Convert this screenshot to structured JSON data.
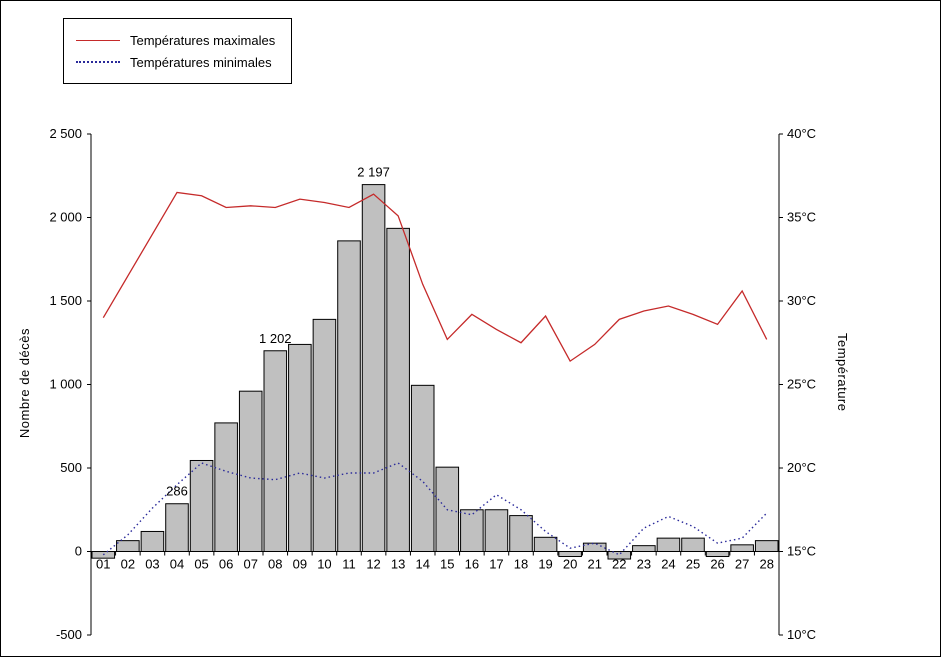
{
  "chart_data": {
    "type": "bar",
    "subtype": "combo-bar-and-lines",
    "title": "",
    "categories": [
      "01",
      "02",
      "03",
      "04",
      "05",
      "06",
      "07",
      "08",
      "09",
      "10",
      "11",
      "12",
      "13",
      "14",
      "15",
      "16",
      "17",
      "18",
      "19",
      "20",
      "21",
      "22",
      "23",
      "24",
      "25",
      "26",
      "27",
      "28"
    ],
    "bar_series": {
      "name": "Nombre de décès",
      "axis": "left",
      "values": [
        -40,
        65,
        120,
        286,
        545,
        770,
        960,
        1202,
        1240,
        1390,
        1860,
        2197,
        1935,
        995,
        505,
        250,
        250,
        215,
        85,
        -30,
        50,
        -45,
        35,
        80,
        80,
        -30,
        40,
        65
      ]
    },
    "series": [
      {
        "name": "Températures maximales",
        "axis": "right",
        "style": "solid",
        "color": "#c52a2a",
        "values": [
          29.0,
          31.5,
          34.0,
          36.5,
          36.3,
          35.6,
          35.7,
          35.6,
          36.1,
          35.9,
          35.6,
          36.4,
          35.1,
          31.0,
          27.7,
          29.2,
          28.3,
          27.5,
          29.1,
          26.4,
          27.4,
          28.9,
          29.4,
          29.7,
          29.2,
          28.6,
          30.6,
          27.7
        ]
      },
      {
        "name": "Températures minimales",
        "axis": "right",
        "style": "dotted",
        "color": "#2a2a9a",
        "values": [
          14.8,
          16.0,
          17.6,
          19.0,
          20.3,
          19.8,
          19.4,
          19.3,
          19.7,
          19.4,
          19.7,
          19.7,
          20.3,
          19.2,
          17.5,
          17.2,
          18.4,
          17.5,
          16.2,
          15.2,
          15.5,
          14.8,
          16.4,
          17.1,
          16.5,
          15.5,
          15.8,
          17.3
        ]
      }
    ],
    "left_axis": {
      "label": "Nombre de décès",
      "min": -500,
      "max": 2500,
      "step": 500,
      "tick_labels": [
        "2 500",
        "2 000",
        "1 500",
        "1 000",
        "500",
        "0",
        "-500"
      ]
    },
    "right_axis": {
      "label": "Température",
      "min": 10,
      "max": 40,
      "step": 5,
      "tick_labels": [
        "40°C",
        "35°C",
        "30°C",
        "25°C",
        "20°C",
        "15°C",
        "10°C"
      ]
    },
    "annotations": [
      {
        "category": "04",
        "text": "286"
      },
      {
        "category": "08",
        "text": "1 202"
      },
      {
        "category": "12",
        "text": "2 197"
      }
    ],
    "legend": {
      "position": "top-left",
      "entries": [
        "Températures maximales",
        "Températures minimales"
      ]
    },
    "colors": {
      "bar_fill": "#c0c0c0",
      "bar_stroke": "#000000",
      "max_line": "#c52a2a",
      "min_line": "#2a2a9a",
      "axis": "#000000"
    },
    "grid": false
  }
}
